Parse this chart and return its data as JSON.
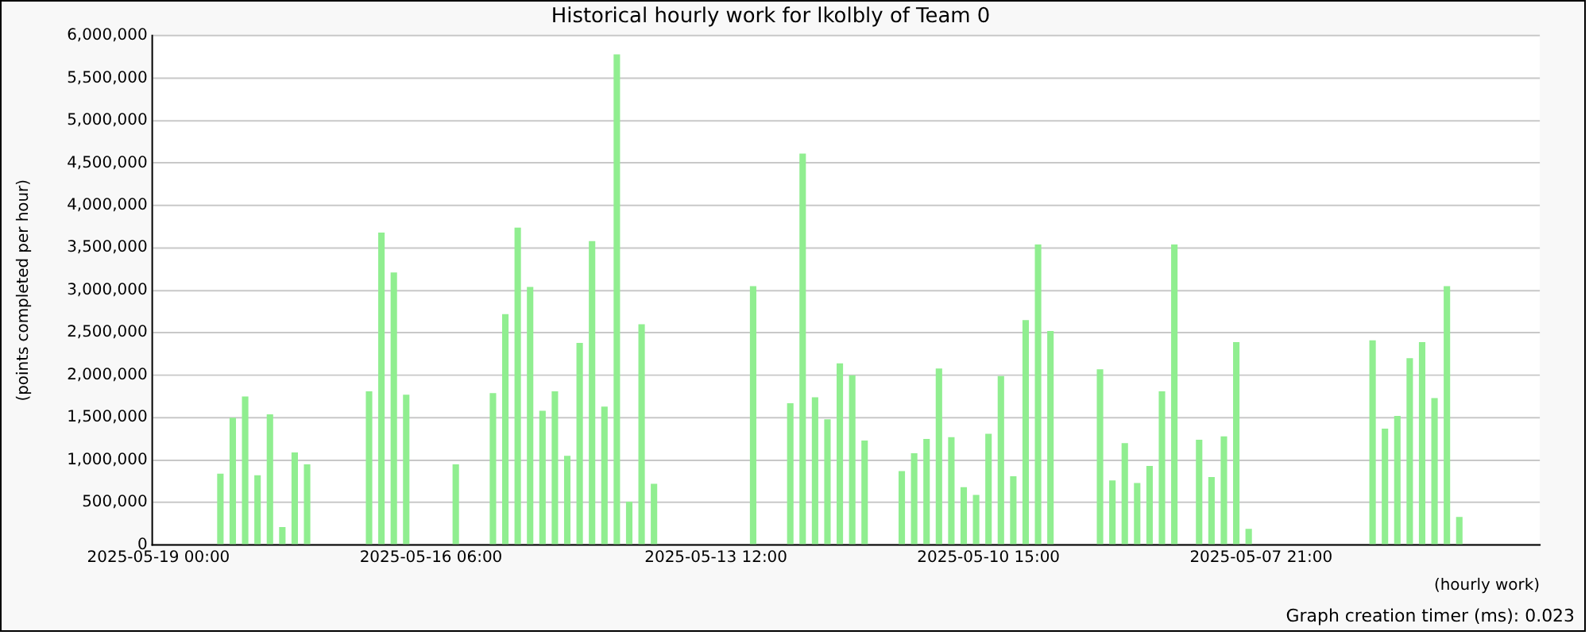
{
  "chart_data": {
    "type": "bar",
    "title": "Historical hourly work for lkolbly of Team 0",
    "xlabel": "(hourly work)",
    "ylabel": "(points completed per hour)",
    "categories": [
      "2025-05-19 00:00",
      null,
      null,
      null,
      null,
      null,
      null,
      null,
      null,
      null,
      null,
      null,
      null,
      null,
      null,
      null,
      null,
      null,
      null,
      null,
      null,
      null,
      "2025-05-16 06:00",
      null,
      null,
      null,
      null,
      null,
      null,
      null,
      null,
      null,
      null,
      null,
      null,
      null,
      null,
      null,
      null,
      null,
      null,
      null,
      null,
      null,
      null,
      "2025-05-13 12:00",
      null,
      null,
      null,
      null,
      null,
      null,
      null,
      null,
      null,
      null,
      null,
      null,
      null,
      null,
      null,
      null,
      null,
      null,
      null,
      null,
      null,
      "2025-05-10 15:00",
      null,
      null,
      null,
      null,
      null,
      null,
      null,
      null,
      null,
      null,
      null,
      null,
      null,
      null,
      null,
      null,
      null,
      null,
      null,
      null,
      null,
      "2025-05-07 21:00",
      null,
      null,
      null,
      null,
      null,
      null,
      null,
      null,
      null,
      null,
      null,
      null,
      null,
      null,
      null,
      null,
      null,
      null,
      null,
      null,
      null,
      null
    ],
    "values": [
      null,
      null,
      null,
      null,
      null,
      840000,
      1500000,
      1750000,
      820000,
      1540000,
      210000,
      1090000,
      950000,
      null,
      null,
      null,
      null,
      1810000,
      3680000,
      3210000,
      1770000,
      null,
      null,
      null,
      950000,
      null,
      null,
      1790000,
      2720000,
      3740000,
      3040000,
      1580000,
      1810000,
      1050000,
      2380000,
      3580000,
      1630000,
      5780000,
      510000,
      2600000,
      720000,
      null,
      null,
      null,
      null,
      null,
      null,
      null,
      3050000,
      null,
      null,
      1670000,
      4610000,
      1740000,
      1480000,
      2140000,
      2000000,
      1230000,
      null,
      null,
      870000,
      1080000,
      1250000,
      2080000,
      1270000,
      680000,
      590000,
      1310000,
      1990000,
      810000,
      2650000,
      3540000,
      2520000,
      null,
      null,
      null,
      2070000,
      760000,
      1200000,
      730000,
      930000,
      1810000,
      3540000,
      null,
      1240000,
      800000,
      1280000,
      2390000,
      190000,
      null,
      null,
      null,
      null,
      null,
      null,
      null,
      null,
      null,
      2410000,
      1370000,
      1520000,
      2200000,
      2390000,
      1730000,
      3050000,
      330000,
      null,
      null,
      null,
      null,
      null,
      null
    ],
    "color": "#90ee90",
    "ylim": [
      0,
      6000000
    ],
    "yticks": [
      {
        "value": 0,
        "label": "0"
      },
      {
        "value": 500000,
        "label": "500,000"
      },
      {
        "value": 1000000,
        "label": "1,000,000"
      },
      {
        "value": 1500000,
        "label": "1,500,000"
      },
      {
        "value": 2000000,
        "label": "2,000,000"
      },
      {
        "value": 2500000,
        "label": "2,500,000"
      },
      {
        "value": 3000000,
        "label": "3,000,000"
      },
      {
        "value": 3500000,
        "label": "3,500,000"
      },
      {
        "value": 4000000,
        "label": "4,000,000"
      },
      {
        "value": 4500000,
        "label": "4,500,000"
      },
      {
        "value": 5000000,
        "label": "5,000,000"
      },
      {
        "value": 5500000,
        "label": "5,500,000"
      },
      {
        "value": 6000000,
        "label": "6,000,000"
      }
    ],
    "grid": "y",
    "annotations": [
      "Graph creation timer (ms): 0.023"
    ]
  }
}
